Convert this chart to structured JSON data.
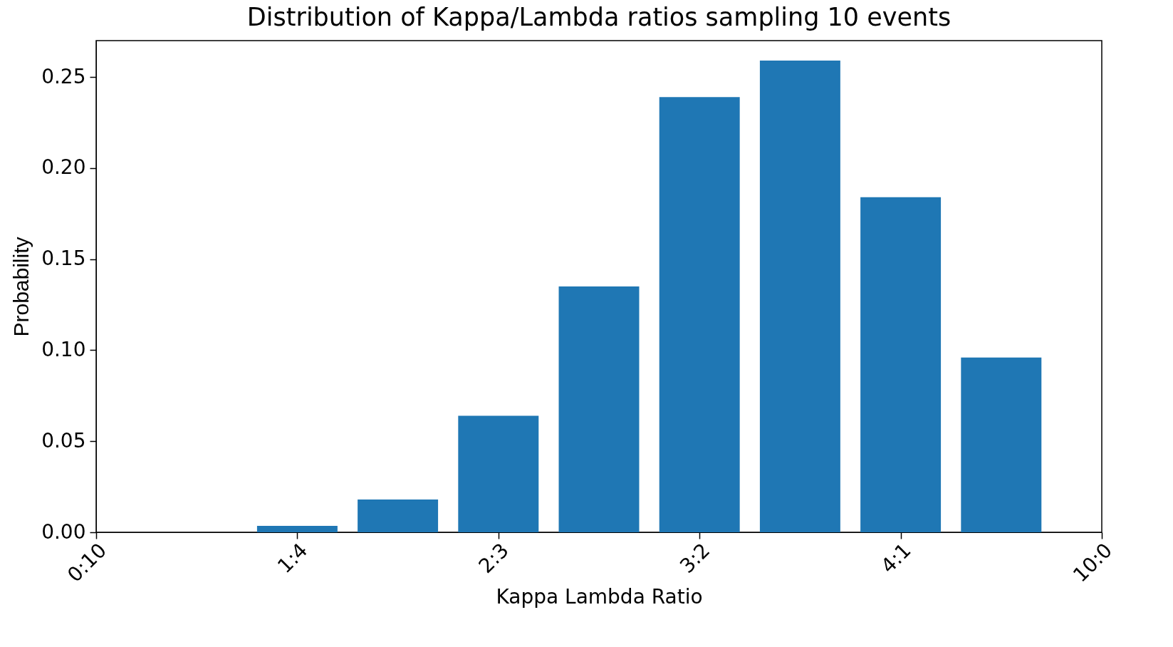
{
  "chart_data": {
    "type": "bar",
    "title": "Distribution of Kappa/Lambda ratios sampling 10 events",
    "xlabel": "Kappa Lambda Ratio",
    "ylabel": "Probability",
    "color": "#1f77b4",
    "categories": [
      "0:10",
      null,
      "1:4",
      null,
      "2:3",
      null,
      "3:2",
      null,
      "4:1",
      null,
      "10:0"
    ],
    "values": [
      null,
      null,
      0.0035,
      0.018,
      0.064,
      0.135,
      0.239,
      0.259,
      0.184,
      0.096,
      null
    ],
    "ylim": [
      0,
      0.27
    ],
    "yticks": [
      {
        "value": 0,
        "label": "0.00"
      },
      {
        "value": 0.05,
        "label": "0.05"
      },
      {
        "value": 0.1,
        "label": "0.10"
      },
      {
        "value": 0.15,
        "label": "0.15"
      },
      {
        "value": 0.2,
        "label": "0.20"
      },
      {
        "value": 0.25,
        "label": "0.25"
      }
    ],
    "grid": false
  }
}
